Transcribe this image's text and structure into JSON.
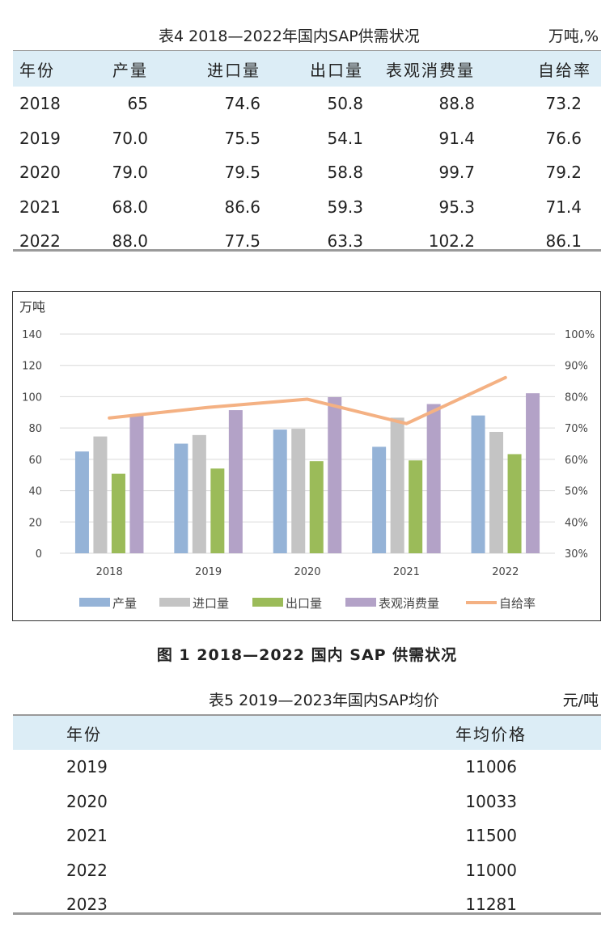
{
  "table4": {
    "title": "表4  2018—2022年国内SAP供需状况",
    "unit": "万吨,%",
    "headers": [
      "年份",
      "产量",
      "进口量",
      "出口量",
      "表观消费量",
      "自给率"
    ],
    "rows": [
      [
        "2018",
        "65",
        "74.6",
        "50.8",
        "88.8",
        "73.2"
      ],
      [
        "2019",
        "70.0",
        "75.5",
        "54.1",
        "91.4",
        "76.6"
      ],
      [
        "2020",
        "79.0",
        "79.5",
        "58.8",
        "99.7",
        "79.2"
      ],
      [
        "2021",
        "68.0",
        "86.6",
        "59.3",
        "95.3",
        "71.4"
      ],
      [
        "2022",
        "88.0",
        "77.5",
        "63.3",
        "102.2",
        "86.1"
      ]
    ]
  },
  "figure": {
    "caption": "图 1  2018—2022 国内 SAP 供需状况"
  },
  "chart_data": {
    "type": "bar",
    "categories": [
      "2018",
      "2019",
      "2020",
      "2021",
      "2022"
    ],
    "ylabel": "万吨",
    "ylim": [
      0,
      140
    ],
    "yticks": [
      0,
      20,
      40,
      60,
      80,
      100,
      120,
      140
    ],
    "y2lim": [
      30,
      100
    ],
    "y2ticks": [
      "30%",
      "40%",
      "50%",
      "60%",
      "70%",
      "80%",
      "90%",
      "100%"
    ],
    "grid": true,
    "legend_position": "bottom",
    "series": [
      {
        "name": "产量",
        "type": "bar",
        "color": "#95b3d7",
        "values": [
          65,
          70.0,
          79.0,
          68.0,
          88.0
        ]
      },
      {
        "name": "进口量",
        "type": "bar",
        "color": "#c4c4c4",
        "values": [
          74.6,
          75.5,
          79.5,
          86.6,
          77.5
        ]
      },
      {
        "name": "出口量",
        "type": "bar",
        "color": "#9bbb59",
        "values": [
          50.8,
          54.1,
          58.8,
          59.3,
          63.3
        ]
      },
      {
        "name": "表观消费量",
        "type": "bar",
        "color": "#b3a2c7",
        "values": [
          88.8,
          91.4,
          99.7,
          95.3,
          102.2
        ]
      },
      {
        "name": "自给率",
        "type": "line",
        "axis": "right",
        "color": "#f4b183",
        "values": [
          73.2,
          76.6,
          79.2,
          71.4,
          86.1
        ]
      }
    ]
  },
  "table5": {
    "title": "表5  2019—2023年国内SAP均价",
    "unit": "元/吨",
    "headers": [
      "年份",
      "年均价格"
    ],
    "rows": [
      [
        "2019",
        "11006"
      ],
      [
        "2020",
        "10033"
      ],
      [
        "2021",
        "11500"
      ],
      [
        "2022",
        "11000"
      ],
      [
        "2023",
        "11281"
      ]
    ]
  }
}
